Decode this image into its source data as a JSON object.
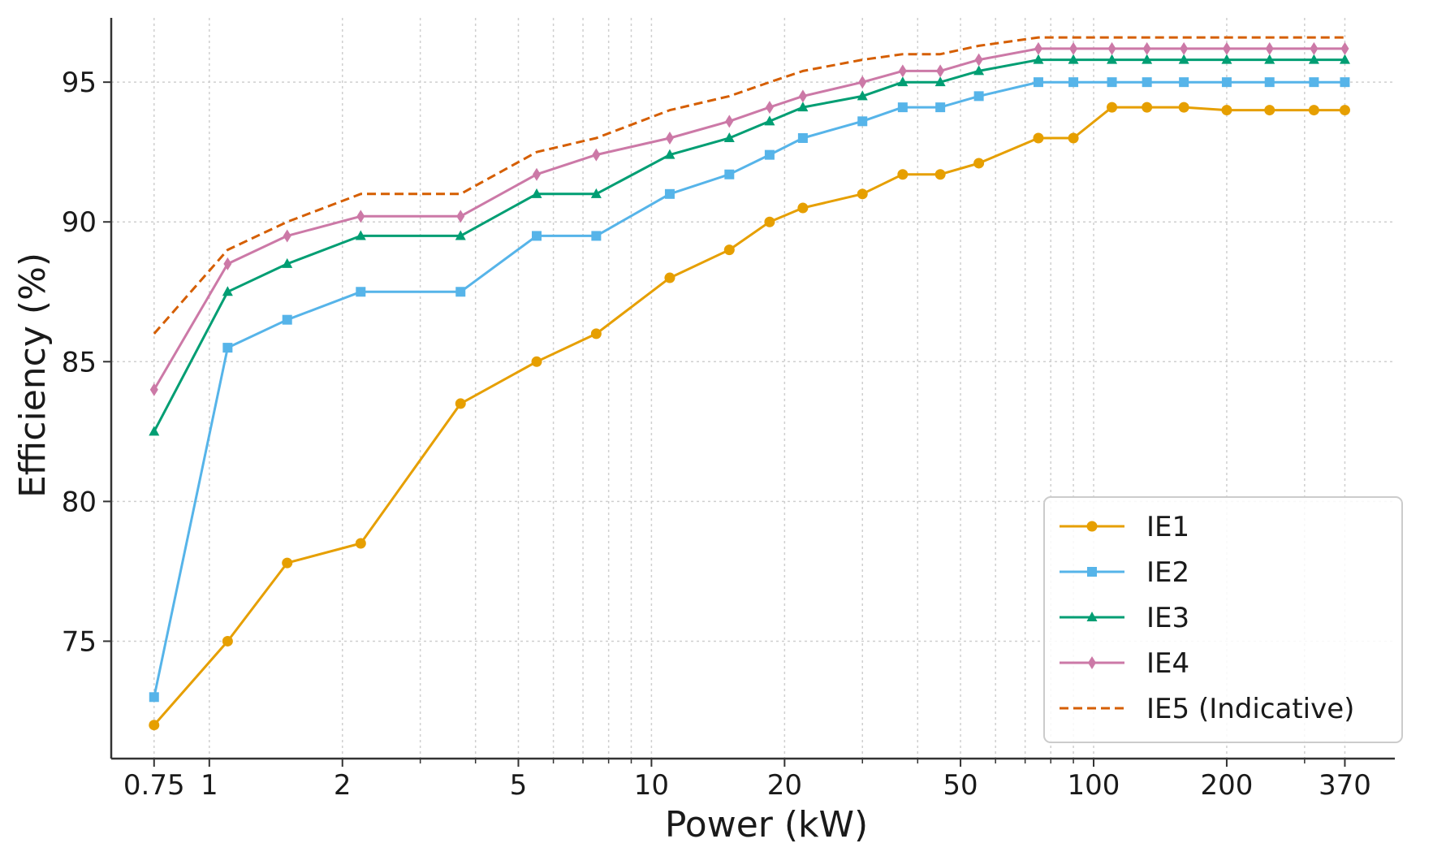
{
  "chart_data": {
    "type": "line",
    "title": "",
    "xlabel": "Power (kW)",
    "ylabel": "Efficiency (%)",
    "xscale": "log",
    "xlim": [
      0.6,
      480
    ],
    "ylim": [
      70.8,
      97.3
    ],
    "grid": true,
    "legend_position": "lower-right",
    "x": [
      0.75,
      1.1,
      1.5,
      2.2,
      3.7,
      5.5,
      7.5,
      11,
      15,
      18.5,
      22,
      30,
      37,
      45,
      55,
      75,
      90,
      110,
      132,
      160,
      200,
      250,
      315,
      370
    ],
    "xticks": [
      {
        "value": 0.75,
        "label": "0.75"
      },
      {
        "value": 1,
        "label": "1"
      },
      {
        "value": 2,
        "label": "2"
      },
      {
        "value": 5,
        "label": "5"
      },
      {
        "value": 10,
        "label": "10"
      },
      {
        "value": 20,
        "label": "20"
      },
      {
        "value": 50,
        "label": "50"
      },
      {
        "value": 100,
        "label": "100"
      },
      {
        "value": 200,
        "label": "200"
      },
      {
        "value": 370,
        "label": "370"
      }
    ],
    "xgrid_minor": [
      3,
      4,
      6,
      7,
      8,
      9,
      30,
      40,
      60,
      70,
      80,
      90,
      300
    ],
    "yticks": [
      {
        "value": 75,
        "label": "75"
      },
      {
        "value": 80,
        "label": "80"
      },
      {
        "value": 85,
        "label": "85"
      },
      {
        "value": 90,
        "label": "90"
      },
      {
        "value": 95,
        "label": "95"
      }
    ],
    "series": [
      {
        "name": "IE1",
        "color": "#E69F00",
        "marker": "circle",
        "dashed": false,
        "values": [
          72.0,
          75.0,
          77.8,
          78.5,
          83.5,
          85.0,
          86.0,
          88.0,
          89.0,
          90.0,
          90.5,
          91.0,
          91.7,
          91.7,
          92.1,
          93.0,
          93.0,
          94.1,
          94.1,
          94.1,
          94.0,
          94.0,
          94.0,
          94.0
        ]
      },
      {
        "name": "IE2",
        "color": "#56B4E9",
        "marker": "square",
        "dashed": false,
        "values": [
          73.0,
          85.5,
          86.5,
          87.5,
          87.5,
          89.5,
          89.5,
          91.0,
          91.7,
          92.4,
          93.0,
          93.6,
          94.1,
          94.1,
          94.5,
          95.0,
          95.0,
          95.0,
          95.0,
          95.0,
          95.0,
          95.0,
          95.0,
          95.0
        ]
      },
      {
        "name": "IE3",
        "color": "#009E73",
        "marker": "triangle",
        "dashed": false,
        "values": [
          82.5,
          87.5,
          88.5,
          89.5,
          89.5,
          91.0,
          91.0,
          92.4,
          93.0,
          93.6,
          94.1,
          94.5,
          95.0,
          95.0,
          95.4,
          95.8,
          95.8,
          95.8,
          95.8,
          95.8,
          95.8,
          95.8,
          95.8,
          95.8
        ]
      },
      {
        "name": "IE4",
        "color": "#CC79A7",
        "marker": "diamond",
        "dashed": false,
        "values": [
          84.0,
          88.5,
          89.5,
          90.2,
          90.2,
          91.7,
          92.4,
          93.0,
          93.6,
          94.1,
          94.5,
          95.0,
          95.4,
          95.4,
          95.8,
          96.2,
          96.2,
          96.2,
          96.2,
          96.2,
          96.2,
          96.2,
          96.2,
          96.2
        ]
      },
      {
        "name": "IE5 (Indicative)",
        "color": "#D55E00",
        "marker": "none",
        "dashed": true,
        "values": [
          86.0,
          89.0,
          90.0,
          91.0,
          91.0,
          92.5,
          93.0,
          94.0,
          94.5,
          95.0,
          95.4,
          95.8,
          96.0,
          96.0,
          96.3,
          96.6,
          96.6,
          96.6,
          96.6,
          96.6,
          96.6,
          96.6,
          96.6,
          96.6
        ]
      }
    ]
  }
}
